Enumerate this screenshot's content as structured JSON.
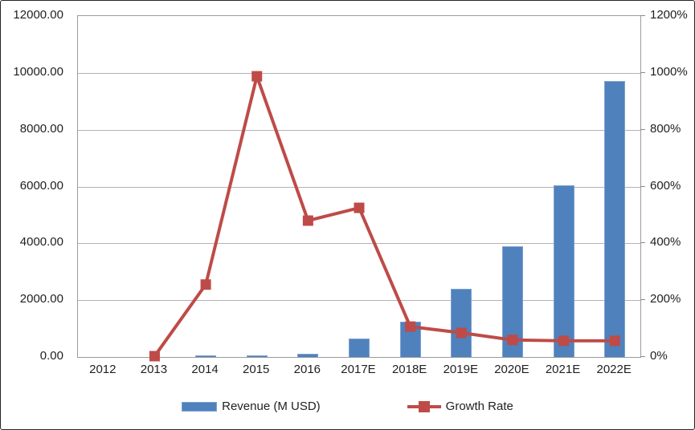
{
  "chart_data": {
    "type": "bar",
    "subtype": "combo-bar-line-dual-axis",
    "categories": [
      "2012",
      "2013",
      "2014",
      "2015",
      "2016",
      "2017E",
      "2018E",
      "2019E",
      "2020E",
      "2021E",
      "2022E"
    ],
    "series": [
      {
        "name": "Revenue (M USD)",
        "type": "bar",
        "axis": "left",
        "color": "#4f81bd",
        "values": [
          2,
          10,
          60,
          65,
          110,
          650,
          1230,
          2400,
          3900,
          6050,
          9700
        ]
      },
      {
        "name": "Growth Rate",
        "type": "line",
        "axis": "right",
        "color": "#be4b48",
        "marker": "square",
        "values": [
          null,
          3,
          255,
          988,
          480,
          525,
          107,
          85,
          60,
          57,
          57
        ]
      }
    ],
    "left_axis": {
      "min": 0,
      "max": 12000,
      "ticks": [
        "0.00",
        "2000.00",
        "4000.00",
        "6000.00",
        "8000.00",
        "10000.00",
        "12000.00"
      ]
    },
    "right_axis": {
      "min": 0,
      "max": 1200,
      "unit": "%",
      "ticks": [
        "0%",
        "200%",
        "400%",
        "600%",
        "800%",
        "1000%",
        "1200%"
      ]
    },
    "grid": true,
    "legend": {
      "position": "bottom",
      "entries": [
        "Revenue (M USD)",
        "Growth Rate"
      ]
    },
    "title": "",
    "xlabel": "",
    "ylabel_left": "",
    "ylabel_right": ""
  }
}
